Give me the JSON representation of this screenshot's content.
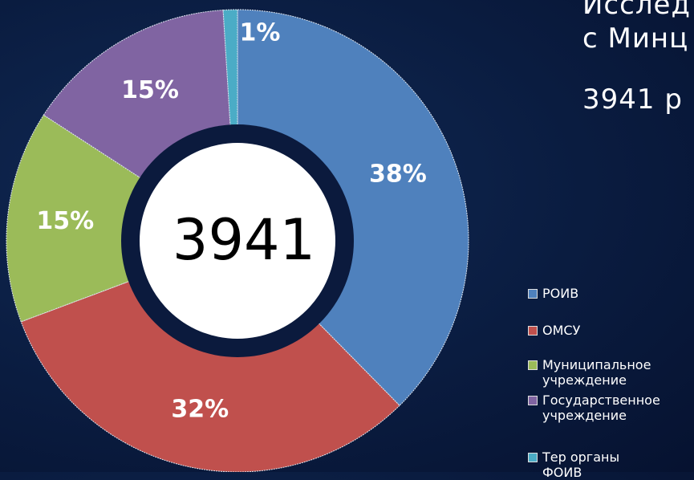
{
  "chart_data": {
    "type": "donut",
    "heading_lines": [
      "Исслед",
      "с Минц",
      "3941 р"
    ],
    "center_label": "3941",
    "categories": [
      "РОИВ",
      "ОМСУ",
      "Муниципальное учреждение",
      "Государственное учреждение",
      "Тер органы ФОИВ"
    ],
    "values": [
      38,
      32,
      15,
      15,
      1
    ],
    "value_labels": [
      "38%",
      "32%",
      "15%",
      "15%",
      "1%"
    ],
    "colors": [
      "#4f81bd",
      "#c0504d",
      "#9bbb59",
      "#8064a2",
      "#4bacc6"
    ],
    "legend": "right"
  }
}
